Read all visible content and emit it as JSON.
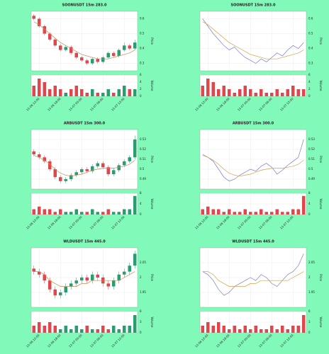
{
  "chart_data": [
    {
      "type": "candlestick",
      "title": "SOONUSDT 15m 283.0",
      "ylabel": "Price",
      "vlabel": "Volume",
      "up_color": "#2a9d6f",
      "down_color": "#e0474c",
      "open": [
        0.62,
        0.6,
        0.55,
        0.5,
        0.46,
        0.42,
        0.39,
        0.41,
        0.37,
        0.34,
        0.32,
        0.3,
        0.33,
        0.31,
        0.34,
        0.37,
        0.35,
        0.39,
        0.42,
        0.4
      ],
      "high": [
        0.63,
        0.61,
        0.56,
        0.51,
        0.47,
        0.43,
        0.42,
        0.42,
        0.38,
        0.35,
        0.33,
        0.34,
        0.34,
        0.35,
        0.38,
        0.38,
        0.4,
        0.44,
        0.43,
        0.46
      ],
      "low": [
        0.59,
        0.54,
        0.49,
        0.45,
        0.41,
        0.38,
        0.38,
        0.36,
        0.33,
        0.31,
        0.29,
        0.29,
        0.3,
        0.3,
        0.33,
        0.34,
        0.34,
        0.38,
        0.39,
        0.39
      ],
      "close": [
        0.6,
        0.55,
        0.5,
        0.46,
        0.42,
        0.39,
        0.41,
        0.37,
        0.34,
        0.32,
        0.3,
        0.33,
        0.31,
        0.34,
        0.37,
        0.35,
        0.39,
        0.42,
        0.4,
        0.44
      ],
      "series": [
        {
          "color": "#c98a5a",
          "values": [
            0.58,
            0.56,
            0.53,
            0.5,
            0.47,
            0.44,
            0.42,
            0.4,
            0.38,
            0.36,
            0.35,
            0.34,
            0.33,
            0.33,
            0.33,
            0.34,
            0.35,
            0.36,
            0.37,
            0.39
          ]
        }
      ],
      "ylim": [
        0.25,
        0.65
      ],
      "yticks": [
        0.3,
        0.4,
        0.5,
        0.6
      ],
      "volume": [
        3,
        5,
        4,
        2,
        3,
        2,
        1,
        2,
        3,
        2,
        1,
        2,
        1,
        1,
        2,
        1,
        2,
        3,
        2,
        2
      ],
      "vlim": [
        0,
        6
      ],
      "vticks": [
        0,
        2,
        4,
        6
      ],
      "xticks": [
        {
          "value": 1,
          "label": "11-06 12:00"
        },
        {
          "value": 5,
          "label": "11-06 18:00"
        },
        {
          "value": 9,
          "label": "11-07 00:00"
        },
        {
          "value": 13,
          "label": "11-07 06:00"
        },
        {
          "value": 17,
          "label": "11-07 12:00"
        }
      ]
    },
    {
      "type": "line",
      "title": "SOONUSDT 15m 283.0",
      "ylabel": "Price",
      "vlabel": "Volume",
      "volume_color": "#e0474c",
      "series": [
        {
          "color": "#7b7bd3",
          "values": [
            0.6,
            0.55,
            0.5,
            0.46,
            0.42,
            0.39,
            0.41,
            0.37,
            0.34,
            0.32,
            0.3,
            0.33,
            0.31,
            0.34,
            0.37,
            0.35,
            0.39,
            0.42,
            0.4,
            0.44
          ]
        },
        {
          "color": "#d4a24c",
          "values": [
            0.58,
            0.56,
            0.53,
            0.5,
            0.47,
            0.44,
            0.42,
            0.4,
            0.38,
            0.36,
            0.35,
            0.34,
            0.33,
            0.33,
            0.33,
            0.34,
            0.35,
            0.36,
            0.37,
            0.39
          ]
        }
      ],
      "ylim": [
        0.25,
        0.65
      ],
      "yticks": [
        0.3,
        0.4,
        0.5,
        0.6
      ],
      "volume": [
        3,
        5,
        4,
        2,
        3,
        2,
        1,
        2,
        3,
        2,
        1,
        2,
        1,
        1,
        2,
        1,
        2,
        3,
        2,
        2
      ],
      "vlim": [
        0,
        6
      ],
      "vticks": [
        0,
        2,
        4,
        6
      ],
      "xticks": [
        {
          "value": 1,
          "label": "11-06 12:00"
        },
        {
          "value": 5,
          "label": "11-06 18:00"
        },
        {
          "value": 9,
          "label": "11-07 00:00"
        },
        {
          "value": 13,
          "label": "11-07 06:00"
        },
        {
          "value": 17,
          "label": "11-07 12:00"
        }
      ]
    },
    {
      "type": "candlestick",
      "title": "ARBUSDT 15m 300.0",
      "ylabel": "Price",
      "vlabel": "Volume",
      "up_color": "#2a9d6f",
      "down_color": "#e0474c",
      "open": [
        0.518,
        0.515,
        0.512,
        0.508,
        0.5,
        0.492,
        0.488,
        0.49,
        0.494,
        0.497,
        0.5,
        0.498,
        0.503,
        0.506,
        0.502,
        0.495,
        0.499,
        0.504,
        0.508,
        0.512
      ],
      "high": [
        0.52,
        0.517,
        0.514,
        0.51,
        0.502,
        0.494,
        0.492,
        0.496,
        0.499,
        0.502,
        0.502,
        0.505,
        0.508,
        0.508,
        0.504,
        0.501,
        0.506,
        0.51,
        0.514,
        0.534
      ],
      "low": [
        0.513,
        0.51,
        0.506,
        0.498,
        0.49,
        0.486,
        0.486,
        0.488,
        0.492,
        0.495,
        0.496,
        0.496,
        0.501,
        0.5,
        0.493,
        0.493,
        0.497,
        0.502,
        0.506,
        0.51
      ],
      "close": [
        0.515,
        0.512,
        0.508,
        0.5,
        0.492,
        0.488,
        0.49,
        0.494,
        0.497,
        0.5,
        0.498,
        0.503,
        0.506,
        0.502,
        0.495,
        0.499,
        0.504,
        0.508,
        0.512,
        0.53
      ],
      "series": [
        {
          "color": "#c98a5a",
          "values": [
            0.514,
            0.512,
            0.509,
            0.505,
            0.5,
            0.496,
            0.494,
            0.493,
            0.494,
            0.495,
            0.497,
            0.499,
            0.5,
            0.501,
            0.501,
            0.501,
            0.502,
            0.503,
            0.505,
            0.509
          ]
        }
      ],
      "ylim": [
        0.48,
        0.54
      ],
      "yticks": [
        0.49,
        0.5,
        0.51,
        0.52,
        0.53
      ],
      "volume": [
        2,
        3,
        2,
        2,
        1,
        2,
        1,
        1,
        2,
        1,
        1,
        2,
        1,
        1,
        2,
        1,
        1,
        2,
        2,
        7
      ],
      "vlim": [
        0,
        8
      ],
      "vticks": [
        0,
        4,
        8
      ],
      "xticks": [
        {
          "value": 1,
          "label": "11-06 12:00"
        },
        {
          "value": 5,
          "label": "11-06 18:00"
        },
        {
          "value": 9,
          "label": "11-07 00:00"
        },
        {
          "value": 13,
          "label": "11-07 06:00"
        },
        {
          "value": 17,
          "label": "11-07 12:00"
        }
      ]
    },
    {
      "type": "line",
      "title": "ARBUSDT 15m 300.0",
      "ylabel": "Price",
      "vlabel": "Volume",
      "volume_color": "#e0474c",
      "series": [
        {
          "color": "#7b7bd3",
          "values": [
            0.515,
            0.512,
            0.508,
            0.5,
            0.492,
            0.488,
            0.49,
            0.494,
            0.497,
            0.5,
            0.498,
            0.503,
            0.506,
            0.502,
            0.495,
            0.499,
            0.504,
            0.508,
            0.512,
            0.53
          ]
        },
        {
          "color": "#d4a24c",
          "values": [
            0.514,
            0.512,
            0.509,
            0.505,
            0.5,
            0.496,
            0.494,
            0.493,
            0.494,
            0.495,
            0.497,
            0.499,
            0.5,
            0.501,
            0.501,
            0.501,
            0.502,
            0.503,
            0.505,
            0.509
          ]
        }
      ],
      "ylim": [
        0.48,
        0.54
      ],
      "yticks": [
        0.49,
        0.5,
        0.51,
        0.52,
        0.53
      ],
      "volume": [
        2,
        3,
        2,
        2,
        1,
        2,
        1,
        1,
        2,
        1,
        1,
        2,
        1,
        1,
        2,
        1,
        1,
        2,
        2,
        7
      ],
      "vlim": [
        0,
        8
      ],
      "vticks": [
        0,
        4,
        8
      ],
      "xticks": [
        {
          "value": 1,
          "label": "11-06 12:00"
        },
        {
          "value": 5,
          "label": "11-06 18:00"
        },
        {
          "value": 9,
          "label": "11-07 00:00"
        },
        {
          "value": 13,
          "label": "11-07 06:00"
        },
        {
          "value": 17,
          "label": "11-07 12:00"
        }
      ]
    },
    {
      "type": "candlestick",
      "title": "WLDUSDT 15m 445.0",
      "ylabel": "Price",
      "vlabel": "Volume",
      "up_color": "#2a9d6f",
      "down_color": "#e0474c",
      "open": [
        2.03,
        2.02,
        2.01,
        1.99,
        1.96,
        1.94,
        1.95,
        1.97,
        1.98,
        1.99,
        2.0,
        1.99,
        2.01,
        2.0,
        1.98,
        1.97,
        1.99,
        2.01,
        2.02,
        2.04
      ],
      "high": [
        2.04,
        2.03,
        2.02,
        2.0,
        1.97,
        1.96,
        1.98,
        1.99,
        2.0,
        2.01,
        2.01,
        2.02,
        2.02,
        2.01,
        1.99,
        2.0,
        2.02,
        2.03,
        2.05,
        2.09
      ],
      "low": [
        2.01,
        2.0,
        1.98,
        1.95,
        1.93,
        1.93,
        1.94,
        1.96,
        1.97,
        1.98,
        1.98,
        1.98,
        1.99,
        1.97,
        1.96,
        1.96,
        1.98,
        2.0,
        2.01,
        2.03
      ],
      "close": [
        2.02,
        2.01,
        1.99,
        1.96,
        1.94,
        1.95,
        1.97,
        1.98,
        1.99,
        2.0,
        1.99,
        2.01,
        2.0,
        1.98,
        1.97,
        1.99,
        2.01,
        2.02,
        2.04,
        2.08
      ],
      "series": [
        {
          "color": "#c98a5a",
          "values": [
            2.02,
            2.02,
            2.01,
            1.99,
            1.98,
            1.97,
            1.97,
            1.97,
            1.97,
            1.98,
            1.98,
            1.99,
            1.99,
            1.99,
            1.99,
            1.99,
            1.99,
            2.0,
            2.01,
            2.02
          ]
        }
      ],
      "ylim": [
        1.9,
        2.1
      ],
      "yticks": [
        1.95,
        2,
        2.05
      ],
      "volume": [
        2,
        3,
        2,
        3,
        2,
        1,
        2,
        1,
        2,
        1,
        2,
        1,
        1,
        2,
        1,
        2,
        1,
        2,
        2,
        5
      ],
      "vlim": [
        0,
        6
      ],
      "vticks": [
        0,
        3,
        6
      ],
      "xticks": [
        {
          "value": 1,
          "label": "11-06 12:00"
        },
        {
          "value": 5,
          "label": "11-06 18:00"
        },
        {
          "value": 9,
          "label": "11-07 00:00"
        },
        {
          "value": 13,
          "label": "11-07 06:00"
        },
        {
          "value": 17,
          "label": "11-07 12:00"
        }
      ]
    },
    {
      "type": "line",
      "title": "WLDUSDT 15m 445.0",
      "ylabel": "Price",
      "vlabel": "Volume",
      "volume_color": "#e0474c",
      "series": [
        {
          "color": "#7b7bd3",
          "values": [
            2.02,
            2.01,
            1.99,
            1.96,
            1.94,
            1.95,
            1.97,
            1.98,
            1.99,
            2.0,
            1.99,
            2.01,
            2.0,
            1.98,
            1.97,
            1.99,
            2.01,
            2.02,
            2.04,
            2.08
          ]
        },
        {
          "color": "#d4a24c",
          "values": [
            2.02,
            2.02,
            2.01,
            1.99,
            1.98,
            1.97,
            1.97,
            1.97,
            1.97,
            1.98,
            1.98,
            1.99,
            1.99,
            1.99,
            1.99,
            1.99,
            1.99,
            2.0,
            2.01,
            2.02
          ]
        }
      ],
      "ylim": [
        1.9,
        2.1
      ],
      "yticks": [
        1.95,
        2,
        2.05
      ],
      "volume": [
        2,
        3,
        2,
        3,
        2,
        1,
        2,
        1,
        2,
        1,
        2,
        1,
        1,
        2,
        1,
        2,
        1,
        2,
        2,
        5
      ],
      "vlim": [
        0,
        6
      ],
      "vticks": [
        0,
        3,
        6
      ],
      "xticks": [
        {
          "value": 1,
          "label": "11-06 12:00"
        },
        {
          "value": 5,
          "label": "11-06 18:00"
        },
        {
          "value": 9,
          "label": "11-07 00:00"
        },
        {
          "value": 13,
          "label": "11-07 06:00"
        },
        {
          "value": 17,
          "label": "11-07 12:00"
        }
      ]
    }
  ]
}
